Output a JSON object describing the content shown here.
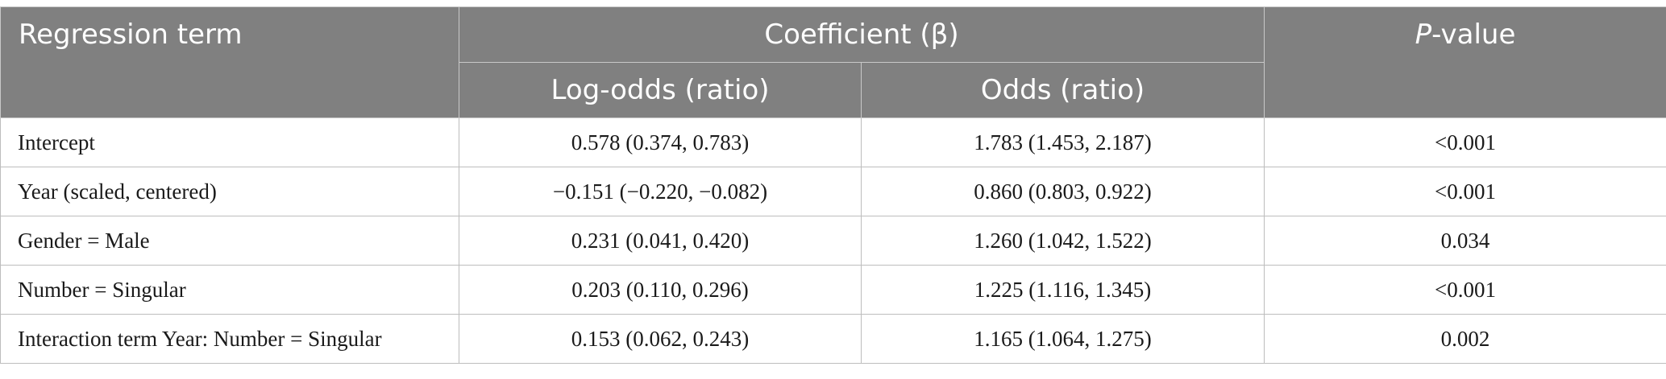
{
  "headers": {
    "term": "Regression term",
    "coefficient": "Coefficient (β)",
    "logodds": "Log-odds (ratio)",
    "odds": "Odds (ratio)",
    "pvalue_italic": "P",
    "pvalue_rest": "-value"
  },
  "rows": [
    {
      "term": "Intercept",
      "logodds": "0.578 (0.374, 0.783)",
      "odds": "1.783 (1.453, 2.187)",
      "p": "<0.001"
    },
    {
      "term": "Year (scaled, centered)",
      "logodds": "−0.151 (−0.220, −0.082)",
      "odds": "0.860 (0.803, 0.922)",
      "p": "<0.001"
    },
    {
      "term": "Gender = Male",
      "logodds": "0.231 (0.041, 0.420)",
      "odds": "1.260 (1.042, 1.522)",
      "p": "0.034"
    },
    {
      "term": "Number = Singular",
      "logodds": "0.203 (0.110, 0.296)",
      "odds": "1.225 (1.116, 1.345)",
      "p": "<0.001"
    },
    {
      "term": "Interaction term Year: Number = Singular",
      "logodds": "0.153 (0.062, 0.243)",
      "odds": "1.165 (1.064, 1.275)",
      "p": "0.002"
    }
  ]
}
